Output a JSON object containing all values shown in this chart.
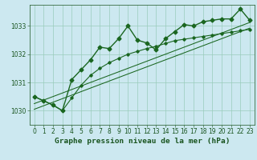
{
  "xlabel": "Graphe pression niveau de la mer (hPa)",
  "x": [
    0,
    1,
    2,
    3,
    4,
    5,
    6,
    7,
    8,
    9,
    10,
    11,
    12,
    13,
    14,
    15,
    16,
    17,
    18,
    19,
    20,
    21,
    22,
    23
  ],
  "line_main": [
    1030.5,
    1030.35,
    1030.2,
    1030.0,
    1031.1,
    1031.45,
    1031.8,
    1032.25,
    1032.2,
    1032.55,
    1033.0,
    1032.5,
    1032.4,
    1032.15,
    1032.55,
    1032.8,
    1033.05,
    1033.0,
    1033.15,
    1033.2,
    1033.25,
    1033.25,
    1033.6,
    1033.2
  ],
  "line_low": [
    1030.5,
    1030.35,
    1030.2,
    1030.0,
    1030.45,
    1030.9,
    1031.25,
    1031.5,
    1031.7,
    1031.85,
    1032.0,
    1032.1,
    1032.2,
    1032.28,
    1032.38,
    1032.48,
    1032.53,
    1032.58,
    1032.63,
    1032.68,
    1032.73,
    1032.78,
    1032.83,
    1032.88
  ],
  "line_reg1": [
    1030.05,
    1030.175,
    1030.3,
    1030.425,
    1030.55,
    1030.675,
    1030.8,
    1030.925,
    1031.05,
    1031.175,
    1031.3,
    1031.425,
    1031.55,
    1031.675,
    1031.8,
    1031.925,
    1032.05,
    1032.175,
    1032.3,
    1032.425,
    1032.55,
    1032.675,
    1032.8,
    1032.925
  ],
  "line_reg2": [
    1030.25,
    1030.375,
    1030.5,
    1030.625,
    1030.75,
    1030.875,
    1031.0,
    1031.125,
    1031.25,
    1031.375,
    1031.5,
    1031.625,
    1031.75,
    1031.875,
    1032.0,
    1032.125,
    1032.25,
    1032.375,
    1032.5,
    1032.625,
    1032.75,
    1032.875,
    1033.0,
    1033.125
  ],
  "ylim": [
    1029.5,
    1033.75
  ],
  "yticks": [
    1030,
    1031,
    1032,
    1033
  ],
  "xticks": [
    0,
    1,
    2,
    3,
    4,
    5,
    6,
    7,
    8,
    9,
    10,
    11,
    12,
    13,
    14,
    15,
    16,
    17,
    18,
    19,
    20,
    21,
    22,
    23
  ],
  "bg_color": "#cce8f0",
  "grid_color": "#99ccbb",
  "line_color": "#1a6620",
  "marker": "D",
  "marker_size_main": 2.5,
  "marker_size_low": 1.8,
  "linewidth_main": 1.0,
  "linewidth_low": 0.8,
  "linewidth_reg": 0.75,
  "font_color": "#1a5520",
  "xlabel_fontsize": 6.8,
  "tick_fontsize": 5.5
}
